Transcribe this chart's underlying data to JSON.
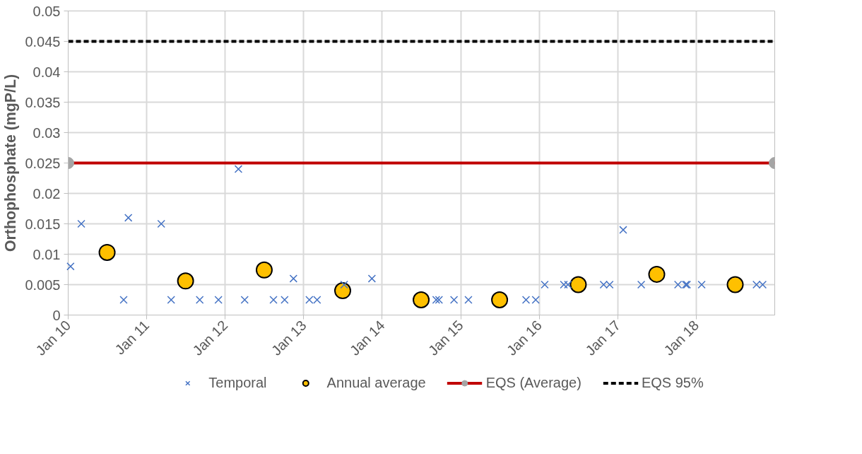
{
  "chart_data": {
    "type": "scatter",
    "ylabel": "Orthophosphate (mgP/L)",
    "xlim": [
      "2010-01-01",
      "2019-01-01"
    ],
    "xticks": [
      {
        "value": "2010-01-01",
        "label": "Jan 10"
      },
      {
        "value": "2011-01-01",
        "label": "Jan 11"
      },
      {
        "value": "2012-01-01",
        "label": "Jan 12"
      },
      {
        "value": "2013-01-01",
        "label": "Jan 13"
      },
      {
        "value": "2014-01-01",
        "label": "Jan 14"
      },
      {
        "value": "2015-01-01",
        "label": "Jan 15"
      },
      {
        "value": "2016-01-01",
        "label": "Jan 16"
      },
      {
        "value": "2017-01-01",
        "label": "Jan 17"
      },
      {
        "value": "2018-01-01",
        "label": "Jan 18"
      }
    ],
    "ylim": [
      0,
      0.05
    ],
    "yticks": [
      0,
      0.005,
      0.01,
      0.015,
      0.02,
      0.025,
      0.03,
      0.035,
      0.04,
      0.045,
      0.05
    ],
    "grid": true,
    "legend": "bottom",
    "series": [
      {
        "name": "Temporal",
        "marker": "cross",
        "color": "#4472c4",
        "x": [
          "2010-01-12",
          "2010-03-03",
          "2010-09-16",
          "2010-10-08",
          "2011-03-10",
          "2011-04-25",
          "2011-09-05",
          "2011-12-01",
          "2012-03-03",
          "2012-04-01",
          "2012-08-13",
          "2012-10-04",
          "2012-11-14",
          "2013-01-27",
          "2013-03-04",
          "2013-07-08",
          "2013-11-14",
          "2014-09-09",
          "2014-09-22",
          "2014-12-01",
          "2015-02-06",
          "2015-11-01",
          "2015-12-16",
          "2016-01-27",
          "2016-04-25",
          "2016-05-14",
          "2016-10-27",
          "2016-11-24",
          "2017-01-26",
          "2017-04-20",
          "2017-10-08",
          "2017-11-13",
          "2017-11-19",
          "2018-01-26",
          "2018-10-08",
          "2018-11-06"
        ],
        "values": [
          0.008,
          0.015,
          0.0025,
          0.016,
          0.015,
          0.0025,
          0.0025,
          0.0025,
          0.024,
          0.0025,
          0.0025,
          0.0025,
          0.006,
          0.0025,
          0.0025,
          0.005,
          0.006,
          0.0025,
          0.0025,
          0.0025,
          0.0025,
          0.0025,
          0.0025,
          0.005,
          0.005,
          0.005,
          0.005,
          0.005,
          0.014,
          0.005,
          0.005,
          0.005,
          0.005,
          0.005,
          0.005,
          0.005
        ]
      },
      {
        "name": "Annual average",
        "marker": "circle",
        "color": "#ffc000",
        "x": [
          "2010-07-01",
          "2011-07-01",
          "2012-07-01",
          "2013-07-01",
          "2014-07-01",
          "2015-07-01",
          "2016-07-01",
          "2017-07-01",
          "2018-07-01"
        ],
        "values": [
          0.0103,
          0.0056,
          0.0074,
          0.004,
          0.0025,
          0.0025,
          0.005,
          0.0067,
          0.005
        ]
      },
      {
        "name": "EQS (Average)",
        "type": "line",
        "marker": "circle",
        "line_style": "solid",
        "color": "#c00000",
        "x": [
          "2010-01-01",
          "2019-01-01"
        ],
        "values": [
          0.025,
          0.025
        ]
      },
      {
        "name": "EQS 95%",
        "type": "line",
        "marker": "none",
        "line_style": "dashed",
        "color": "#000000",
        "x": [
          "2010-01-01",
          "2019-01-01"
        ],
        "values": [
          0.045,
          0.045
        ]
      }
    ]
  }
}
